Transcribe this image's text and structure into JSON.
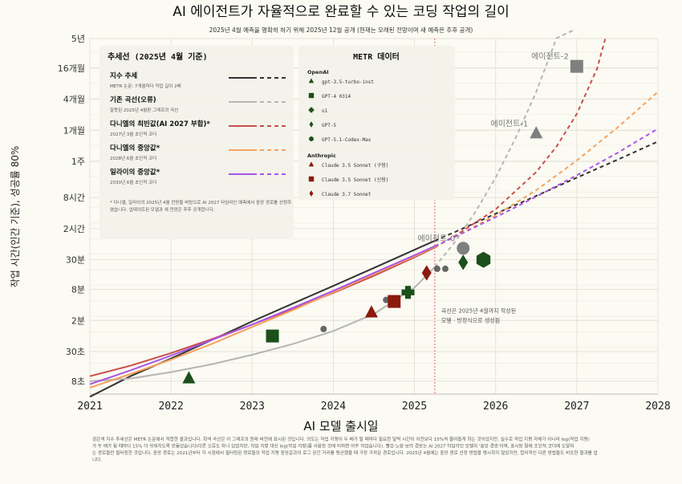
{
  "chart_data": {
    "type": "line",
    "title": "AI 에이전트가 자율적으로 완료할 수 있는 코딩 작업의 길이",
    "subtitle": "2025년 4월 예측을 명확히 하기 위해 2025년 12월 공개 (현재는 오래된 전망이며 새 예측은 추후 공개)",
    "xlabel": "AI 모델 출시일",
    "ylabel": "작업 시간(인간 기준), 성공률 80%",
    "xlim": [
      2021,
      2028
    ],
    "ylog": true,
    "xticks": [
      "2021",
      "2022",
      "2023",
      "2024",
      "2025",
      "2026",
      "2027",
      "2028"
    ],
    "yticks": [
      {
        "label": "8초",
        "seconds": 8
      },
      {
        "label": "30초",
        "seconds": 30
      },
      {
        "label": "2분",
        "seconds": 120
      },
      {
        "label": "8분",
        "seconds": 480
      },
      {
        "label": "30분",
        "seconds": 1800
      },
      {
        "label": "2시간",
        "seconds": 7200
      },
      {
        "label": "8시간",
        "seconds": 28800
      },
      {
        "label": "1주",
        "seconds": 144000
      },
      {
        "label": "1개월",
        "seconds": 576000
      },
      {
        "label": "4개월",
        "seconds": 2304000
      },
      {
        "label": "16개월",
        "seconds": 9216000
      },
      {
        "label": "5년",
        "seconds": 34560000
      }
    ],
    "grid": true,
    "vline": {
      "x": 2025.25,
      "color": "#e06666",
      "note": "곡선은 2025년 4월까지 작성된\n모델 · 방정식으로 생성됨"
    },
    "milestones": [
      {
        "label": "에이전트-0",
        "x": 2025.6,
        "seconds": 3000,
        "shape": "circle",
        "color": "#7f7f7f"
      },
      {
        "label": "에이전트-1",
        "x": 2026.5,
        "seconds": 500000,
        "shape": "triangle",
        "color": "#7f7f7f"
      },
      {
        "label": "에이전트-2",
        "x": 2027.0,
        "seconds": 10000000,
        "shape": "square",
        "color": "#7f7f7f"
      }
    ],
    "series": [
      {
        "name": "지수 추세",
        "color": "#333333",
        "x": [
          2021.0,
          2021.5,
          2022.0,
          2022.5,
          2023.0,
          2023.5,
          2024.0,
          2024.5,
          2025.0,
          2025.25,
          2025.5,
          2026.0,
          2026.5,
          2027.0,
          2027.5,
          2028.0
        ],
        "seconds": [
          4,
          10,
          22,
          50,
          115,
          255,
          560,
          1250,
          2800,
          4200,
          6200,
          14000,
          31000,
          70000,
          155000,
          350000
        ]
      },
      {
        "name": "기존 곡선(오류)",
        "color": "#b5b5b5",
        "x": [
          2021.0,
          2021.5,
          2022.0,
          2022.5,
          2023.0,
          2023.5,
          2024.0,
          2024.5,
          2025.0,
          2025.25,
          2025.5,
          2025.75,
          2026.0,
          2026.25,
          2026.5,
          2026.75,
          2026.95
        ],
        "seconds": [
          8,
          9,
          12,
          17,
          26,
          42,
          75,
          160,
          520,
          1300,
          4000,
          15000,
          70000,
          420000,
          3200000,
          35000000,
          500000000
        ]
      },
      {
        "name": "다니엘의 최빈값(AI 2027 부합)",
        "color": "#c8504b",
        "x": [
          2021.0,
          2021.5,
          2022.0,
          2022.5,
          2023.0,
          2023.5,
          2024.0,
          2024.5,
          2025.0,
          2025.25,
          2025.5,
          2026.0,
          2026.5,
          2026.75,
          2027.0,
          2027.25,
          2027.35
        ],
        "seconds": [
          10,
          16,
          28,
          52,
          100,
          200,
          410,
          880,
          2000,
          3100,
          5200,
          17000,
          90000,
          280000,
          1200000,
          9000000,
          34000000
        ]
      },
      {
        "name": "다니엘의 중앙값",
        "color": "#f5a25d",
        "x": [
          2021.0,
          2021.5,
          2022.0,
          2022.5,
          2023.0,
          2023.5,
          2024.0,
          2024.5,
          2025.0,
          2025.25,
          2025.5,
          2026.0,
          2026.5,
          2027.0,
          2027.5,
          2028.0
        ],
        "seconds": [
          6,
          11,
          21,
          42,
          90,
          190,
          420,
          950,
          2100,
          3200,
          5000,
          13000,
          40000,
          150000,
          650000,
          3200000
        ]
      },
      {
        "name": "일라이의 중앙값",
        "color": "#a855e8",
        "x": [
          2021.0,
          2021.5,
          2022.0,
          2022.5,
          2023.0,
          2023.5,
          2024.0,
          2024.5,
          2025.0,
          2025.25,
          2025.5,
          2026.0,
          2026.5,
          2027.0,
          2027.5,
          2028.0
        ],
        "seconds": [
          7,
          13,
          25,
          50,
          100,
          210,
          450,
          1000,
          2200,
          3300,
          5000,
          12000,
          30000,
          78000,
          210000,
          620000
        ]
      }
    ],
    "points": [
      {
        "name": "gpt-3.5-turbo-inst",
        "group": "OpenAI",
        "x": 2022.22,
        "seconds": 9,
        "shape": "triangle",
        "color": "#1b4f1b"
      },
      {
        "name": "GPT-4 0314",
        "group": "OpenAI",
        "x": 2023.25,
        "seconds": 60,
        "shape": "square",
        "color": "#1b4f1b"
      },
      {
        "name": "o1",
        "group": "OpenAI",
        "x": 2024.92,
        "seconds": 420,
        "shape": "plus",
        "color": "#1b4f1b"
      },
      {
        "name": "GPT-5",
        "group": "OpenAI",
        "x": 2025.6,
        "seconds": 1600,
        "shape": "diamond",
        "color": "#1b4f1b"
      },
      {
        "name": "GPT-5.1-Codex-Max",
        "group": "OpenAI",
        "x": 2025.85,
        "seconds": 1800,
        "shape": "hexagon",
        "color": "#1b4f1b"
      },
      {
        "name": "Claude 3.5 Sonnet (구형)",
        "group": "Anthropic",
        "x": 2024.47,
        "seconds": 170,
        "shape": "triangle",
        "color": "#8b1a0e"
      },
      {
        "name": "Claude 3.5 Sonnet (신형)",
        "group": "Anthropic",
        "x": 2024.75,
        "seconds": 280,
        "shape": "square",
        "color": "#8b1a0e"
      },
      {
        "name": "Claude 3.7 Sonnet",
        "group": "Anthropic",
        "x": 2025.15,
        "seconds": 1000,
        "shape": "diamond",
        "color": "#8b1a0e"
      }
    ],
    "gray_points": [
      {
        "x": 2023.88,
        "seconds": 82
      },
      {
        "x": 2024.65,
        "seconds": 300
      },
      {
        "x": 2025.28,
        "seconds": 1200
      },
      {
        "x": 2025.38,
        "seconds": 1200
      }
    ],
    "legend_trend": {
      "title": "추세선 (2025년 4월 기준)",
      "entries": [
        {
          "label": "지수 추세",
          "sub": "METR 논문: 7개월마다 작업 길이 2배",
          "color": "#333333"
        },
        {
          "label": "기존 곡선(오류)",
          "sub": "잘못된 2025년 4월판 그래프의 곡선",
          "color": "#b5b5b5"
        },
        {
          "label": "다니엘의 최빈값(AI 2027 부합)*",
          "sub": "2027년 3월 초인적 코더",
          "color": "#c8504b"
        },
        {
          "label": "다니엘의 중앙값*",
          "sub": "2028년 6월 초인적 코더",
          "color": "#f5a25d"
        },
        {
          "label": "일라이의 중앙값*",
          "sub": "2030년 6월 초인적 코더",
          "color": "#a855e8"
        }
      ],
      "footnote": "* 다니엘, 일라이의 2025년 4월 전망을 바탕으로 AI 2027 타임라인 예측에서 중앙 경로를 선정하였습니다. 업데이트된 모델과 새 전망은 추후 공개합니다."
    },
    "legend_metr": {
      "title": "METR 데이터",
      "groups": [
        "OpenAI",
        "Anthropic"
      ]
    },
    "caption": "검은색 지수 추세선은 METR 논문에서 적합한 결과입니다. 회색 곡선은 이 그래프의 원래 버전에 표시된 것입니다. 의도는 작업 지평이 두 배가 될 때마다 필요한 달력 시간이 이전보다 15%씩 줄어들게 하는 것이었지만, 실수로 작업 지평 자체가 아니라 log(작업 지평)가 두 배가 될 때마다 15% 더 쉬워지도록 만들었습니다(다른 오류도 하나 있었지만, 작업 지평 대신 log(작업 지평)를 사용한 것에 비하면 아주 작았습니다). 빨강·노랑·보라 경로는 AI 2027 타임라인 모델의 '중앙 경로'이며, 표시된 달에 초인적 코더에 도달하는 경로들만 필터링한 것입니다. 중앙 경로는 2021년부터 각 시점에서 필터링된 경로들의 작업 지평 중앙값과의 로그 공간 거리를 평균했을 때 가장 가까운 경로입니다. 2025년 4월에는 중앙 경로 선정 방법을 명시하지 않았지만, 합리적인 다른 방법들도 비슷한 결과를 냅니다."
  }
}
